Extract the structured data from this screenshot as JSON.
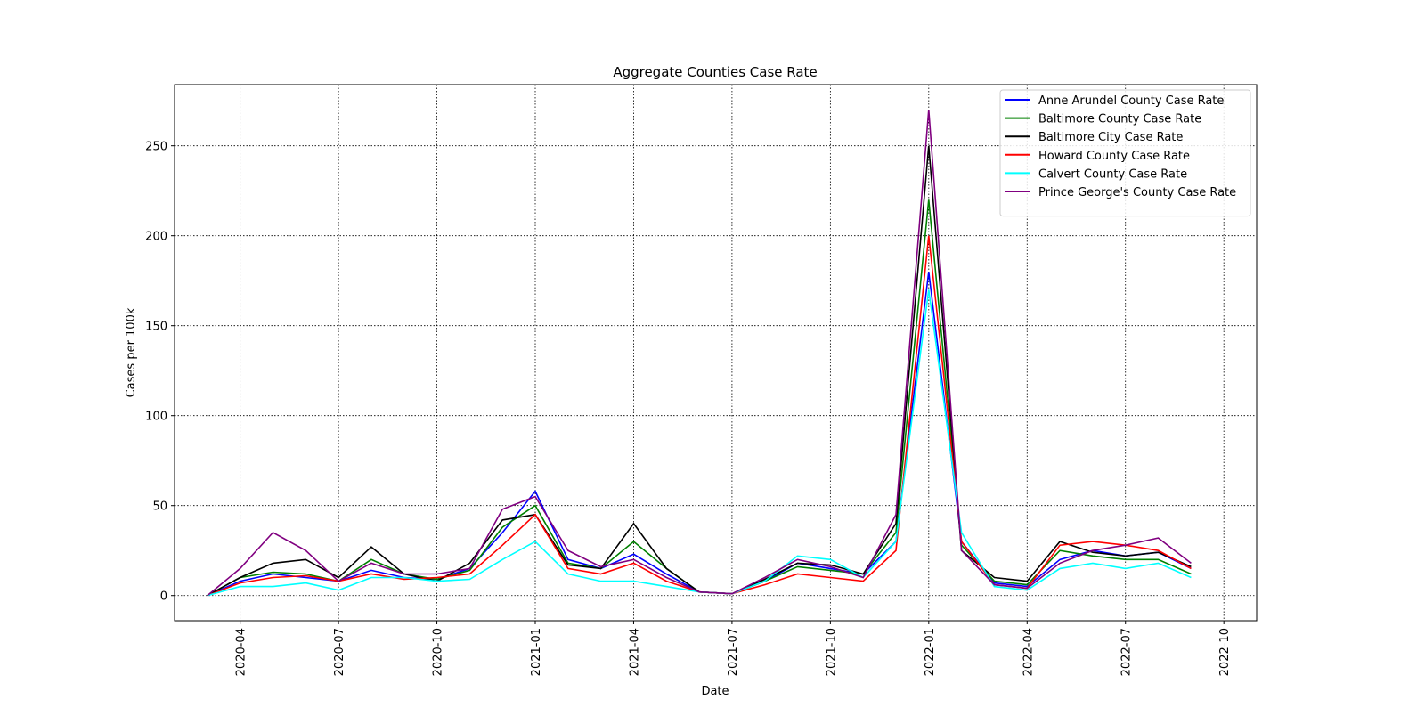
{
  "chart_data": {
    "type": "line",
    "title": "Aggregate Counties Case Rate",
    "x_label": "Date",
    "y_label": "Cases per 100k",
    "x": [
      "2020-03",
      "2020-04",
      "2020-05",
      "2020-06",
      "2020-07",
      "2020-08",
      "2020-09",
      "2020-10",
      "2020-11",
      "2020-12",
      "2021-01",
      "2021-02",
      "2021-03",
      "2021-04",
      "2021-05",
      "2021-06",
      "2021-07",
      "2021-08",
      "2021-09",
      "2021-10",
      "2021-11",
      "2021-12",
      "2022-01",
      "2022-02",
      "2022-03",
      "2022-04",
      "2022-05",
      "2022-06",
      "2022-07",
      "2022-08",
      "2022-09"
    ],
    "series": [
      {
        "name": "Anne Arundel County Case Rate",
        "color": "#0000ff",
        "values": [
          0,
          8,
          12,
          10,
          8,
          14,
          10,
          9,
          15,
          35,
          58,
          20,
          15,
          23,
          12,
          2,
          1,
          8,
          18,
          15,
          12,
          30,
          180,
          30,
          7,
          5,
          20,
          25,
          22,
          24,
          15
        ]
      },
      {
        "name": "Baltimore County Case Rate",
        "color": "#008000",
        "values": [
          0,
          10,
          13,
          12,
          8,
          20,
          12,
          9,
          14,
          38,
          50,
          18,
          15,
          30,
          15,
          2,
          1,
          8,
          16,
          14,
          12,
          35,
          220,
          28,
          8,
          6,
          25,
          22,
          20,
          20,
          12
        ]
      },
      {
        "name": "Baltimore City Case Rate",
        "color": "#000000",
        "values": [
          0,
          10,
          18,
          20,
          10,
          27,
          12,
          8,
          18,
          42,
          45,
          17,
          15,
          40,
          15,
          2,
          1,
          9,
          18,
          17,
          12,
          40,
          250,
          25,
          10,
          8,
          30,
          24,
          22,
          24,
          16
        ]
      },
      {
        "name": "Howard County Case Rate",
        "color": "#ff0000",
        "values": [
          0,
          7,
          10,
          11,
          8,
          12,
          9,
          10,
          12,
          28,
          45,
          15,
          12,
          18,
          8,
          2,
          1,
          6,
          12,
          10,
          8,
          25,
          200,
          30,
          6,
          4,
          28,
          30,
          28,
          25,
          15
        ]
      },
      {
        "name": "Calvert County Case Rate",
        "color": "#00ffff",
        "values": [
          0,
          5,
          5,
          7,
          3,
          10,
          10,
          8,
          9,
          20,
          30,
          12,
          8,
          8,
          5,
          2,
          1,
          8,
          22,
          20,
          10,
          30,
          170,
          35,
          5,
          3,
          15,
          18,
          15,
          18,
          10
        ]
      },
      {
        "name": "Prince George's County Case Rate",
        "color": "#800080",
        "values": [
          0,
          15,
          35,
          25,
          8,
          18,
          12,
          12,
          15,
          48,
          55,
          25,
          16,
          20,
          10,
          2,
          1,
          10,
          20,
          16,
          10,
          45,
          270,
          25,
          6,
          4,
          18,
          25,
          28,
          32,
          18
        ]
      }
    ],
    "xlim": [
      "2020-02",
      "2022-11"
    ],
    "xticks": [
      "2020-04",
      "2020-07",
      "2020-10",
      "2021-01",
      "2021-04",
      "2021-07",
      "2021-10",
      "2022-01",
      "2022-04",
      "2022-07",
      "2022-10"
    ],
    "ylim": [
      -14,
      284
    ],
    "yticks": [
      0,
      50,
      100,
      150,
      200,
      250
    ],
    "grid": true,
    "legend": "upper right"
  }
}
